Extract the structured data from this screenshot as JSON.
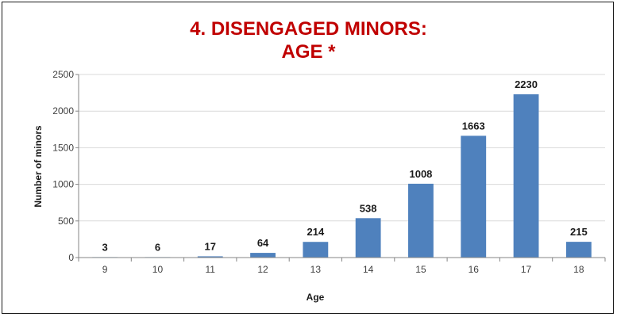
{
  "chart_data": {
    "type": "bar",
    "title_line1": "4. DISENGAGED MINORS:",
    "title_line2": "AGE *",
    "xlabel": "Age",
    "ylabel": "Number of minors",
    "categories": [
      "9",
      "10",
      "11",
      "12",
      "13",
      "14",
      "15",
      "16",
      "17",
      "18"
    ],
    "values": [
      3,
      6,
      17,
      64,
      214,
      538,
      1008,
      1663,
      2230,
      215
    ],
    "ylim": [
      0,
      2500
    ],
    "yticks": [
      "0",
      "500",
      "1000",
      "1500",
      "2000",
      "2500"
    ],
    "grid": true,
    "legend": "none",
    "bar_color": "#4f81bd",
    "grid_color": "#d9d9d9",
    "title_color": "#c00000"
  }
}
